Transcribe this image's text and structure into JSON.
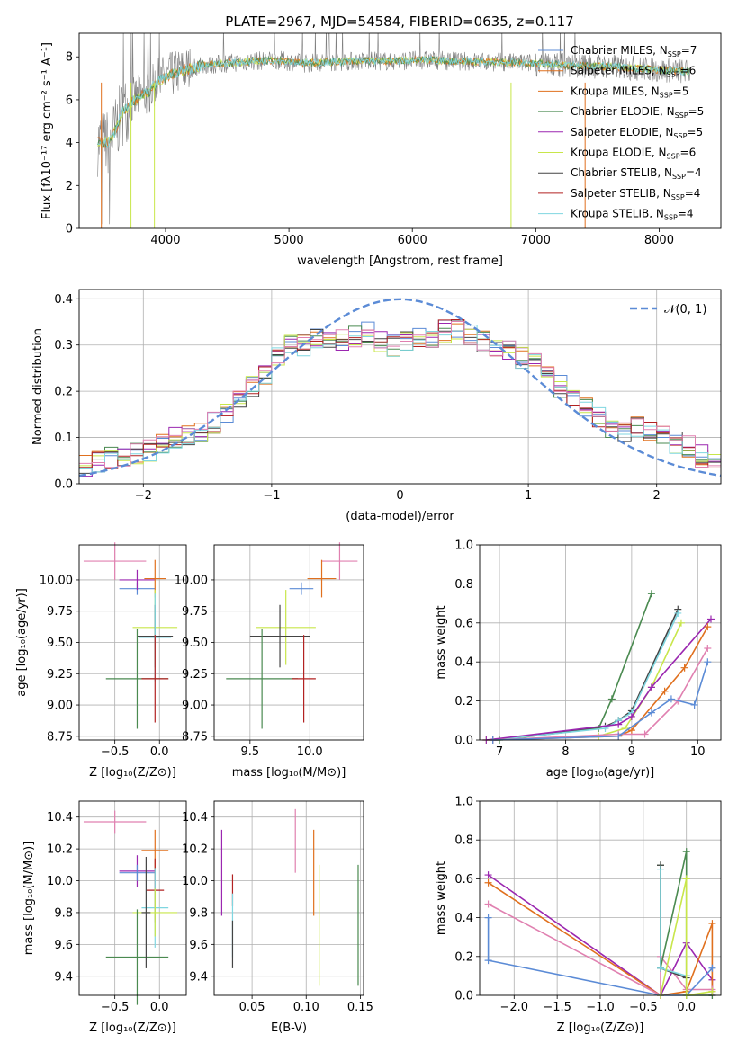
{
  "figure": {
    "title": "PLATE=2967, MJD=54584, FIBERID=0635, z=0.117"
  },
  "colors": {
    "chabrier_miles": "#5b8bd6",
    "salpeter_miles": "#e0701e",
    "kroupa_miles": "#e0701e",
    "chabrier_elodie": "#4a8a50",
    "salpeter_elodie": "#9b27b0",
    "kroupa_elodie": "#c8e64a",
    "chabrier_stelib": "#444444",
    "salpeter_stelib": "#b22222",
    "kroupa_stelib": "#7fd6e0",
    "data_gray": "#808080",
    "pink": "#e080b0",
    "normal": "#5b8bd6",
    "grid": "#b0b0b0"
  },
  "chart_data": [
    {
      "type": "line",
      "id": "spectrum",
      "title": "PLATE=2967, MJD=54584, FIBERID=0635, z=0.117",
      "xlabel": "wavelength [Angstrom, rest frame]",
      "ylabel": "Flux [fλ10⁻¹⁷ erg cm⁻² s⁻¹ A⁻¹]",
      "xlim": [
        3300,
        8500
      ],
      "ylim": [
        0,
        9.1
      ],
      "xticks": [
        "4000",
        "5000",
        "6000",
        "7000",
        "8000"
      ],
      "yticks": [
        "0",
        "2",
        "4",
        "6",
        "8"
      ],
      "legend": [
        "Chabrier MILES, N_SSP=7",
        "Salpeter MILES, N_SSP=6",
        "Kroupa MILES, N_SSP=5",
        "Chabrier ELODIE, N_SSP=5",
        "Salpeter ELODIE, N_SSP=5",
        "Kroupa ELODIE, N_SSP=6",
        "Chabrier STELIB, N_SSP=4",
        "Salpeter STELIB, N_SSP=4",
        "Kroupa STELIB, N_SSP=4"
      ],
      "continuum": {
        "x": [
          3450,
          3550,
          3650,
          3750,
          3850,
          3950,
          4100,
          4300,
          4500,
          4700,
          4900,
          5100,
          5300,
          5500,
          5800,
          6100,
          6400,
          6700,
          7000,
          7300,
          7600,
          8000,
          8250
        ],
        "y": [
          4.0,
          4.0,
          5.4,
          6.0,
          6.3,
          6.9,
          7.3,
          7.6,
          7.7,
          7.8,
          7.85,
          7.7,
          7.75,
          7.8,
          7.8,
          7.85,
          7.8,
          7.75,
          7.7,
          7.6,
          7.55,
          7.4,
          7.3
        ]
      }
    },
    {
      "type": "line",
      "id": "residuals",
      "xlabel": "(data-model)/error",
      "ylabel": "Normed distribution",
      "xlim": [
        -2.5,
        2.5
      ],
      "ylim": [
        0,
        0.42
      ],
      "xticks": [
        "−2",
        "−1",
        "0",
        "1",
        "2"
      ],
      "yticks": [
        "0.0",
        "0.1",
        "0.2",
        "0.3",
        "0.4"
      ],
      "legend": [
        "𝒩(0, 1)"
      ],
      "histogram_base": {
        "bin_edges": [
          -2.5,
          -2.4,
          -2.3,
          -2.2,
          -2.1,
          -2.0,
          -1.9,
          -1.8,
          -1.7,
          -1.6,
          -1.5,
          -1.4,
          -1.3,
          -1.2,
          -1.1,
          -1.0,
          -0.9,
          -0.8,
          -0.7,
          -0.6,
          -0.5,
          -0.4,
          -0.3,
          -0.2,
          -0.1,
          0.0,
          0.1,
          0.2,
          0.3,
          0.4,
          0.5,
          0.6,
          0.7,
          0.8,
          0.9,
          1.0,
          1.1,
          1.2,
          1.3,
          1.4,
          1.5,
          1.6,
          1.7,
          1.8,
          1.9,
          2.0,
          2.1,
          2.2,
          2.3,
          2.4,
          2.5
        ],
        "values": [
          0.04,
          0.045,
          0.055,
          0.06,
          0.065,
          0.07,
          0.09,
          0.1,
          0.1,
          0.11,
          0.13,
          0.15,
          0.19,
          0.21,
          0.24,
          0.27,
          0.3,
          0.3,
          0.31,
          0.32,
          0.31,
          0.32,
          0.33,
          0.31,
          0.3,
          0.31,
          0.32,
          0.31,
          0.33,
          0.33,
          0.32,
          0.31,
          0.3,
          0.29,
          0.27,
          0.26,
          0.24,
          0.21,
          0.19,
          0.17,
          0.14,
          0.12,
          0.11,
          0.12,
          0.11,
          0.1,
          0.09,
          0.08,
          0.06,
          0.05
        ]
      }
    },
    {
      "type": "scatter",
      "id": "age_vs_Z",
      "xlabel": "Z [log₁₀(Z/Z⊙)]",
      "ylabel": "age  [log₁₀(age/yr)]",
      "xlim": [
        -0.9,
        0.3
      ],
      "ylim": [
        8.72,
        10.28
      ],
      "xticks": [
        "−0.5",
        "0.0"
      ],
      "yticks": [
        "8.75",
        "9.00",
        "9.25",
        "9.50",
        "9.75",
        "10.00"
      ],
      "points": [
        {
          "c": "pink",
          "x": -0.5,
          "xerr": 0.35,
          "y": 10.15,
          "yerr": 0.15
        },
        {
          "c": "chabrier_miles",
          "x": -0.25,
          "xerr": 0.2,
          "y": 9.93,
          "yerr": 0.05
        },
        {
          "c": "salpeter_elodie",
          "x": -0.25,
          "xerr": 0.2,
          "y": 10.0,
          "yerr": 0.08
        },
        {
          "c": "salpeter_miles",
          "x": -0.05,
          "xerr": 0.12,
          "y": 10.01,
          "yerr": 0.15
        },
        {
          "c": "kroupa_elodie",
          "x": -0.05,
          "xerr": 0.25,
          "y": 9.62,
          "yerr": 0.3
        },
        {
          "c": "chabrier_stelib",
          "x": -0.05,
          "xerr": 0.2,
          "y": 9.55,
          "yerr": 0.25
        },
        {
          "c": "kroupa_stelib",
          "x": -0.05,
          "xerr": 0.18,
          "y": 9.54,
          "yerr": 0.35
        },
        {
          "c": "chabrier_elodie",
          "x": -0.25,
          "xerr": 0.35,
          "y": 9.21,
          "yerr": 0.4
        },
        {
          "c": "salpeter_stelib",
          "x": -0.05,
          "xerr": 0.15,
          "y": 9.21,
          "yerr": 0.35
        }
      ]
    },
    {
      "type": "scatter",
      "id": "age_vs_mass",
      "xlabel": "mass [log₁₀(M/M⊙)]",
      "ylabel": "",
      "xlim": [
        9.2,
        10.45
      ],
      "ylim": [
        8.72,
        10.28
      ],
      "xticks": [
        "9.5",
        "10.0"
      ],
      "yticks": [
        "8.75",
        "9.00",
        "9.25",
        "9.50",
        "9.75",
        "10.00"
      ],
      "points": [
        {
          "c": "pink",
          "x": 10.25,
          "xerr": 0.15,
          "y": 10.15,
          "yerr": 0.15
        },
        {
          "c": "salpeter_miles",
          "x": 10.1,
          "xerr": 0.12,
          "y": 10.01,
          "yerr": 0.15
        },
        {
          "c": "chabrier_miles",
          "x": 9.93,
          "xerr": 0.1,
          "y": 9.93,
          "yerr": 0.05
        },
        {
          "c": "kroupa_elodie",
          "x": 9.8,
          "xerr": 0.25,
          "y": 9.62,
          "yerr": 0.3
        },
        {
          "c": "chabrier_stelib",
          "x": 9.75,
          "xerr": 0.25,
          "y": 9.55,
          "yerr": 0.25
        },
        {
          "c": "chabrier_elodie",
          "x": 9.6,
          "xerr": 0.3,
          "y": 9.21,
          "yerr": 0.4
        },
        {
          "c": "salpeter_stelib",
          "x": 9.95,
          "xerr": 0.1,
          "y": 9.21,
          "yerr": 0.35
        }
      ]
    },
    {
      "type": "line",
      "id": "massweight_vs_age",
      "xlabel": "age  [log₁₀(age/yr)]",
      "ylabel": "mass weight",
      "xlim": [
        6.7,
        10.35
      ],
      "ylim": [
        0,
        1.0
      ],
      "xticks": [
        "7",
        "8",
        "9",
        "10"
      ],
      "yticks": [
        "0.0",
        "0.2",
        "0.4",
        "0.6",
        "0.8",
        "1.0"
      ],
      "series": [
        {
          "c": "chabrier_elodie",
          "x": [
            6.9,
            7.0,
            8.5,
            8.7,
            9.3
          ],
          "y": [
            0.0,
            0.0,
            0.06,
            0.21,
            0.75
          ]
        },
        {
          "c": "chabrier_stelib",
          "x": [
            6.9,
            8.6,
            8.8,
            9.0,
            9.7
          ],
          "y": [
            0.0,
            0.07,
            0.1,
            0.15,
            0.67
          ]
        },
        {
          "c": "kroupa_stelib",
          "x": [
            6.9,
            8.6,
            8.8,
            9.0,
            9.7
          ],
          "y": [
            0.0,
            0.06,
            0.1,
            0.14,
            0.65
          ]
        },
        {
          "c": "kroupa_elodie",
          "x": [
            6.8,
            8.5,
            8.9,
            9.3,
            9.75
          ],
          "y": [
            0.0,
            0.02,
            0.06,
            0.27,
            0.6
          ]
        },
        {
          "c": "salpeter_elodie",
          "x": [
            6.8,
            8.8,
            9.0,
            9.3,
            10.2
          ],
          "y": [
            0.0,
            0.08,
            0.12,
            0.27,
            0.62
          ]
        },
        {
          "c": "salpeter_miles",
          "x": [
            6.9,
            8.8,
            9.0,
            9.5,
            9.8,
            10.15
          ],
          "y": [
            0.0,
            0.02,
            0.05,
            0.25,
            0.37,
            0.58
          ]
        },
        {
          "c": "pink",
          "x": [
            6.9,
            8.8,
            9.2,
            9.7,
            10.15
          ],
          "y": [
            0.0,
            0.03,
            0.03,
            0.2,
            0.47
          ]
        },
        {
          "c": "chabrier_miles",
          "x": [
            6.9,
            8.8,
            9.3,
            9.6,
            9.95,
            10.15
          ],
          "y": [
            0.0,
            0.02,
            0.14,
            0.21,
            0.18,
            0.4
          ]
        }
      ]
    },
    {
      "type": "scatter",
      "id": "mass_vs_Z",
      "xlabel": "Z [log₁₀(Z/Z⊙)]",
      "ylabel": "mass [log₁₀(M/M⊙)]",
      "xlim": [
        -0.9,
        0.3
      ],
      "ylim": [
        9.28,
        10.5
      ],
      "xticks": [
        "−0.5",
        "0.0"
      ],
      "yticks": [
        "9.4",
        "9.6",
        "9.8",
        "10.0",
        "10.2",
        "10.4"
      ],
      "points": [
        {
          "c": "pink",
          "x": -0.5,
          "xerr": 0.35,
          "y": 10.37,
          "yerr": 0.07
        },
        {
          "c": "salpeter_miles",
          "x": -0.05,
          "xerr": 0.15,
          "y": 10.19,
          "yerr": 0.13
        },
        {
          "c": "salpeter_elodie",
          "x": -0.25,
          "xerr": 0.2,
          "y": 10.06,
          "yerr": 0.1
        },
        {
          "c": "chabrier_miles",
          "x": -0.25,
          "xerr": 0.2,
          "y": 10.05,
          "yerr": 0.05
        },
        {
          "c": "salpeter_stelib",
          "x": -0.05,
          "xerr": 0.1,
          "y": 9.94,
          "yerr": 0.2
        },
        {
          "c": "kroupa_stelib",
          "x": -0.05,
          "xerr": 0.15,
          "y": 9.83,
          "yerr": 0.25
        },
        {
          "c": "kroupa_elodie",
          "x": -0.05,
          "xerr": 0.25,
          "y": 9.8,
          "yerr": 0.15
        },
        {
          "c": "chabrier_elodie",
          "x": -0.25,
          "xerr": 0.35,
          "y": 9.52,
          "yerr": 0.3
        },
        {
          "c": "chabrier_stelib",
          "x": -0.15,
          "xerr": 0.05,
          "y": 9.8,
          "yerr": 0.35
        }
      ]
    },
    {
      "type": "scatter",
      "id": "mass_vs_EBV",
      "xlabel": "E(B-V)",
      "ylabel": "",
      "xlim": [
        0.015,
        0.153
      ],
      "ylim": [
        9.28,
        10.5
      ],
      "xticks": [
        "0.05",
        "0.10",
        "0.15"
      ],
      "yticks": [
        "9.4",
        "9.6",
        "9.8",
        "10.0",
        "10.2",
        "10.4"
      ],
      "points": [
        {
          "c": "salpeter_elodie",
          "x": 0.022,
          "y": 10.05,
          "yerr": 0.27
        },
        {
          "c": "salpeter_stelib",
          "x": 0.032,
          "y": 9.94,
          "yerr": 0.1
        },
        {
          "c": "kroupa_stelib",
          "x": 0.032,
          "y": 9.72,
          "yerr": 0.2
        },
        {
          "c": "chabrier_stelib",
          "x": 0.032,
          "y": 9.6,
          "yerr": 0.15
        },
        {
          "c": "pink",
          "x": 0.09,
          "y": 10.25,
          "yerr": 0.2
        },
        {
          "c": "salpeter_miles",
          "x": 0.107,
          "y": 10.05,
          "yerr": 0.27
        },
        {
          "c": "kroupa_elodie",
          "x": 0.112,
          "y": 9.72,
          "yerr": 0.38
        },
        {
          "c": "chabrier_elodie",
          "x": 0.148,
          "y": 9.72,
          "yerr": 0.38
        }
      ]
    },
    {
      "type": "line",
      "id": "massweight_vs_Z",
      "xlabel": "Z [log₁₀(Z/Z⊙)]",
      "ylabel": "mass weight",
      "xlim": [
        -2.4,
        0.4
      ],
      "ylim": [
        0,
        1.0
      ],
      "xticks": [
        "−2.0",
        "−1.5",
        "−1.0",
        "−0.5",
        "0.0"
      ],
      "yticks": [
        "0.0",
        "0.2",
        "0.4",
        "0.6",
        "0.8",
        "1.0"
      ],
      "series": [
        {
          "c": "salpeter_elodie",
          "x": [
            -2.3,
            -0.3,
            0.0,
            0.3,
            0.3
          ],
          "y": [
            0.62,
            0.0,
            0.27,
            0.08,
            0.0
          ]
        },
        {
          "c": "salpeter_miles",
          "x": [
            -2.3,
            -0.3,
            0.0,
            0.3,
            0.3
          ],
          "y": [
            0.58,
            0.0,
            0.02,
            0.37,
            0.02
          ]
        },
        {
          "c": "pink",
          "x": [
            -2.3,
            -0.3,
            -0.3,
            0.0,
            0.3
          ],
          "y": [
            0.47,
            0.0,
            0.2,
            0.03,
            0.03
          ]
        },
        {
          "c": "chabrier_miles",
          "x": [
            -2.3,
            -2.3,
            -0.3,
            0.0,
            0.3
          ],
          "y": [
            0.4,
            0.18,
            0.0,
            0.0,
            0.14
          ]
        },
        {
          "c": "chabrier_elodie",
          "x": [
            -0.3,
            -0.3,
            0.0,
            0.0,
            0.3
          ],
          "y": [
            0.67,
            0.14,
            0.74,
            0.0,
            0.0
          ]
        },
        {
          "c": "chabrier_stelib",
          "x": [
            -0.3,
            -0.3,
            0.0,
            0.0
          ],
          "y": [
            0.67,
            0.14,
            0.09,
            0.1
          ]
        },
        {
          "c": "kroupa_stelib",
          "x": [
            -0.3,
            -0.3,
            0.0
          ],
          "y": [
            0.65,
            0.14,
            0.1
          ]
        },
        {
          "c": "kroupa_elodie",
          "x": [
            -0.3,
            0.0,
            0.0,
            0.3
          ],
          "y": [
            0.0,
            0.6,
            0.0,
            0.02
          ]
        }
      ]
    }
  ]
}
